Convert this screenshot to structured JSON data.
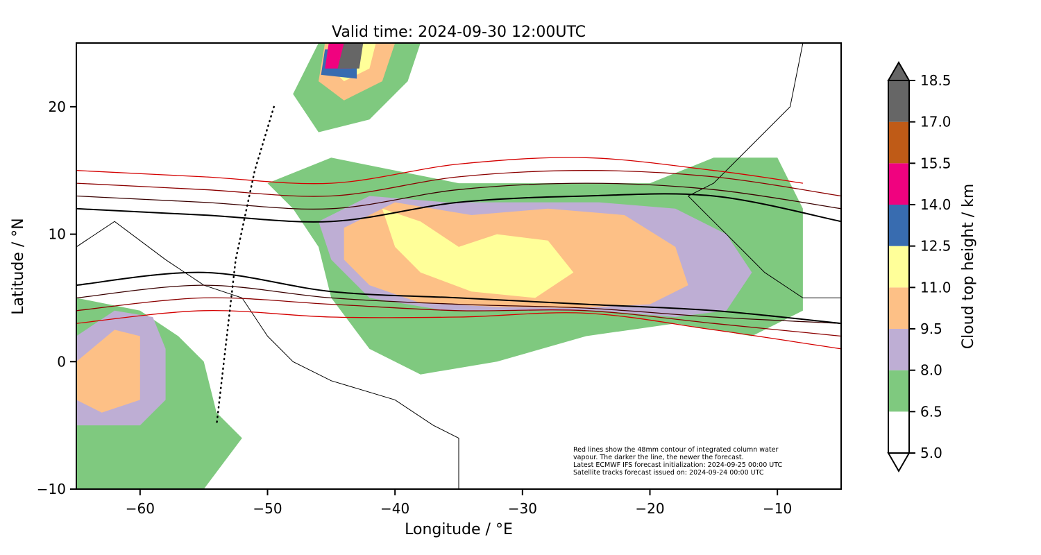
{
  "chart_data": {
    "type": "map",
    "title": "Valid time: 2024-09-30 12:00UTC",
    "xlabel": "Longitude / °E",
    "ylabel": "Latitude / °N",
    "xlim": [
      -65,
      -5
    ],
    "ylim": [
      -10,
      25
    ],
    "x_ticks": [
      -60,
      -50,
      -40,
      -30,
      -20,
      -10
    ],
    "y_ticks": [
      -10,
      0,
      10,
      20
    ],
    "x_tick_labels": [
      "−60",
      "−50",
      "−40",
      "−30",
      "−20",
      "−10"
    ],
    "y_tick_labels": [
      "−10",
      "0",
      "10",
      "20"
    ],
    "colorbar": {
      "label": "Cloud top height / km",
      "levels": [
        5.0,
        6.5,
        8.0,
        9.5,
        11.0,
        12.5,
        14.0,
        15.5,
        17.0,
        18.5
      ],
      "level_labels": [
        "5.0",
        "6.5",
        "8.0",
        "9.5",
        "11.0",
        "12.5",
        "14.0",
        "15.5",
        "17.0",
        "18.5"
      ],
      "colors": [
        "#ffffff",
        "#7fc97f",
        "#beaed4",
        "#fdc086",
        "#ffff99",
        "#386cb0",
        "#f0027f",
        "#bf5b17",
        "#666666"
      ],
      "extend": "both"
    },
    "annotation": [
      "Red lines show the 48mm contour of integrated column water",
      "vapour. The darker the line, the newer the forecast.",
      "Latest ECMWF IFS forecast initialization: 2024-09-25 00:00 UTC",
      "Satellite tracks forecast issued on: 2024-09-24 00:00 UTC"
    ],
    "cloud_regions": [
      {
        "level": 1,
        "points": [
          [
            -50,
            14
          ],
          [
            -45,
            16
          ],
          [
            -40,
            15
          ],
          [
            -35,
            14
          ],
          [
            -30,
            14
          ],
          [
            -25,
            14
          ],
          [
            -20,
            14
          ],
          [
            -15,
            16
          ],
          [
            -10,
            16
          ],
          [
            -8,
            12
          ],
          [
            -8,
            4
          ],
          [
            -12,
            2
          ],
          [
            -18,
            3
          ],
          [
            -25,
            2
          ],
          [
            -32,
            0
          ],
          [
            -38,
            -1
          ],
          [
            -42,
            1
          ],
          [
            -45,
            5
          ],
          [
            -46,
            9
          ],
          [
            -48,
            12
          ]
        ]
      },
      {
        "level": 2,
        "points": [
          [
            -46,
            11
          ],
          [
            -42,
            13
          ],
          [
            -36,
            12.5
          ],
          [
            -30,
            12.5
          ],
          [
            -24,
            12.5
          ],
          [
            -18,
            12
          ],
          [
            -14,
            10
          ],
          [
            -12,
            7
          ],
          [
            -14,
            4
          ],
          [
            -18,
            3.5
          ],
          [
            -24,
            4
          ],
          [
            -30,
            4
          ],
          [
            -36,
            4
          ],
          [
            -42,
            5
          ],
          [
            -45,
            8
          ]
        ]
      },
      {
        "level": 3,
        "points": [
          [
            -44,
            10.5
          ],
          [
            -40,
            12.5
          ],
          [
            -34,
            11.5
          ],
          [
            -28,
            12
          ],
          [
            -22,
            11.5
          ],
          [
            -18,
            9
          ],
          [
            -17,
            6
          ],
          [
            -20,
            4.5
          ],
          [
            -26,
            4.2
          ],
          [
            -32,
            4.3
          ],
          [
            -38,
            4.6
          ],
          [
            -42,
            6
          ],
          [
            -44,
            8
          ]
        ]
      },
      {
        "level": 4,
        "points": [
          [
            -41,
            12
          ],
          [
            -38,
            11
          ],
          [
            -35,
            9
          ],
          [
            -32,
            10
          ],
          [
            -28,
            9.5
          ],
          [
            -26,
            7
          ],
          [
            -29,
            5
          ],
          [
            -34,
            5.5
          ],
          [
            -38,
            7
          ],
          [
            -40,
            9
          ]
        ]
      },
      {
        "level": 1,
        "points": [
          [
            -65,
            5
          ],
          [
            -60,
            4
          ],
          [
            -57,
            2
          ],
          [
            -55,
            0
          ],
          [
            -54,
            -4
          ],
          [
            -52,
            -6
          ],
          [
            -55,
            -10
          ],
          [
            -65,
            -10
          ]
        ]
      },
      {
        "level": 2,
        "points": [
          [
            -65,
            2
          ],
          [
            -62,
            4
          ],
          [
            -59,
            3.5
          ],
          [
            -58,
            1
          ],
          [
            -58,
            -3
          ],
          [
            -60,
            -5
          ],
          [
            -65,
            -5
          ]
        ]
      },
      {
        "level": 3,
        "points": [
          [
            -65,
            0
          ],
          [
            -62,
            2.5
          ],
          [
            -60,
            2
          ],
          [
            -60,
            -3
          ],
          [
            -63,
            -4
          ],
          [
            -65,
            -3
          ]
        ]
      },
      {
        "level": 1,
        "points": [
          [
            -48,
            21
          ],
          [
            -46,
            25
          ],
          [
            -38,
            25
          ],
          [
            -39,
            22
          ],
          [
            -42,
            19
          ],
          [
            -46,
            18
          ]
        ]
      },
      {
        "level": 3,
        "points": [
          [
            -46,
            22
          ],
          [
            -45.5,
            25
          ],
          [
            -40,
            25
          ],
          [
            -41,
            22
          ],
          [
            -44,
            20.5
          ]
        ]
      },
      {
        "level": 4,
        "points": [
          [
            -45,
            23
          ],
          [
            -45,
            25
          ],
          [
            -41.5,
            25
          ],
          [
            -42,
            23
          ],
          [
            -44,
            22
          ]
        ]
      },
      {
        "level": 5,
        "points": [
          [
            -45.8,
            22.5
          ],
          [
            -45.5,
            24.5
          ],
          [
            -43,
            24.5
          ],
          [
            -43,
            22.2
          ]
        ]
      },
      {
        "level": 6,
        "points": [
          [
            -45.5,
            23
          ],
          [
            -45.2,
            25
          ],
          [
            -43.2,
            25
          ],
          [
            -43.4,
            23
          ]
        ]
      },
      {
        "level": 8,
        "points": [
          [
            -44.5,
            23
          ],
          [
            -44,
            25
          ],
          [
            -42.5,
            25
          ],
          [
            -42.8,
            23
          ]
        ]
      }
    ],
    "ivw_contours": [
      {
        "color": "#d40000",
        "points": [
          [
            -65,
            15
          ],
          [
            -55,
            14.5
          ],
          [
            -45,
            14
          ],
          [
            -35,
            15.5
          ],
          [
            -25,
            16
          ],
          [
            -15,
            15
          ],
          [
            -8,
            14
          ]
        ]
      },
      {
        "color": "#d40000",
        "points": [
          [
            -65,
            3
          ],
          [
            -55,
            4
          ],
          [
            -45,
            3.5
          ],
          [
            -35,
            3.5
          ],
          [
            -25,
            3.8
          ],
          [
            -15,
            2.5
          ],
          [
            -5,
            1
          ]
        ]
      },
      {
        "color": "#8b0000",
        "points": [
          [
            -65,
            14
          ],
          [
            -55,
            13.5
          ],
          [
            -45,
            13
          ],
          [
            -35,
            14.5
          ],
          [
            -25,
            15
          ],
          [
            -15,
            14.5
          ],
          [
            -5,
            13
          ]
        ]
      },
      {
        "color": "#8b0000",
        "points": [
          [
            -65,
            4
          ],
          [
            -55,
            5
          ],
          [
            -45,
            4.5
          ],
          [
            -35,
            4
          ],
          [
            -25,
            4
          ],
          [
            -15,
            3
          ],
          [
            -5,
            2
          ]
        ]
      },
      {
        "color": "#3a0000",
        "points": [
          [
            -65,
            13
          ],
          [
            -55,
            12.5
          ],
          [
            -45,
            12
          ],
          [
            -35,
            13.5
          ],
          [
            -25,
            14
          ],
          [
            -15,
            13.5
          ],
          [
            -5,
            12
          ]
        ]
      },
      {
        "color": "#3a0000",
        "points": [
          [
            -65,
            5
          ],
          [
            -55,
            6
          ],
          [
            -45,
            5
          ],
          [
            -35,
            4.5
          ],
          [
            -25,
            4.2
          ],
          [
            -15,
            3.5
          ],
          [
            -5,
            3
          ]
        ]
      },
      {
        "color": "#000000",
        "points": [
          [
            -65,
            12
          ],
          [
            -55,
            11.5
          ],
          [
            -45,
            11
          ],
          [
            -35,
            12.5
          ],
          [
            -25,
            13
          ],
          [
            -15,
            13
          ],
          [
            -5,
            11
          ]
        ]
      },
      {
        "color": "#000000",
        "points": [
          [
            -65,
            6
          ],
          [
            -55,
            7
          ],
          [
            -45,
            5.5
          ],
          [
            -35,
            5
          ],
          [
            -25,
            4.5
          ],
          [
            -15,
            4
          ],
          [
            -5,
            3
          ]
        ]
      }
    ],
    "satellite_track": [
      [
        -49.5,
        20
      ],
      [
        -51,
        15
      ],
      [
        -52.5,
        8
      ],
      [
        -54,
        -5
      ]
    ],
    "coastlines": [
      [
        [
          -65,
          9
        ],
        [
          -62,
          11
        ],
        [
          -58,
          8
        ],
        [
          -55,
          6
        ],
        [
          -52,
          5
        ],
        [
          -50,
          2
        ],
        [
          -48,
          0
        ],
        [
          -45,
          -1.5
        ],
        [
          -40,
          -3
        ],
        [
          -37,
          -5
        ],
        [
          -35,
          -6
        ],
        [
          -35,
          -10
        ]
      ],
      [
        [
          -8,
          25
        ],
        [
          -9,
          20
        ],
        [
          -12,
          17
        ],
        [
          -15,
          14
        ],
        [
          -17,
          13
        ],
        [
          -15,
          11
        ],
        [
          -13,
          9
        ],
        [
          -11,
          7
        ],
        [
          -8,
          5
        ],
        [
          -5,
          5
        ]
      ]
    ]
  }
}
